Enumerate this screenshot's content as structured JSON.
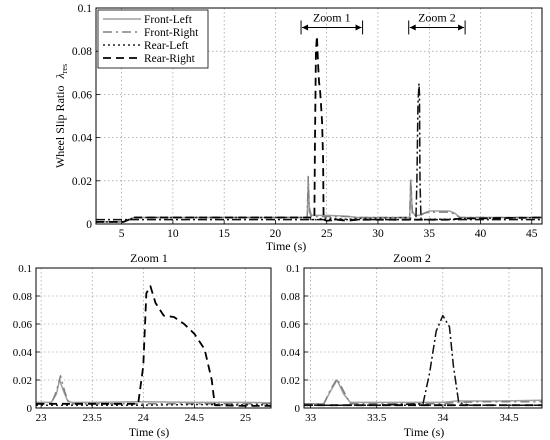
{
  "chart_data": [
    {
      "type": "line",
      "title": "",
      "xlabel": "Time (s)",
      "ylabel": "Wheel Slip Ratio",
      "ylabel_symbol": "λ",
      "ylabel_subscript": "res",
      "xlim": [
        2.5,
        46
      ],
      "ylim": [
        0,
        0.1
      ],
      "xticks": [
        5,
        10,
        15,
        20,
        25,
        30,
        35,
        40,
        45
      ],
      "yticks": [
        0,
        0.02,
        0.04,
        0.06,
        0.08,
        0.1
      ],
      "ytick_labels": [
        "0",
        "0.02",
        "0.04",
        "0.06",
        "0.08",
        "0.1"
      ],
      "grid": true,
      "legend_position": "top-left",
      "annotations": [
        {
          "label": "Zoom 1",
          "x_start": 22.5,
          "x_end": 28.5,
          "arrow_y": 0.091
        },
        {
          "label": "Zoom 2",
          "x_start": 33,
          "x_end": 38.5,
          "arrow_y": 0.091
        }
      ],
      "series": [
        {
          "name": "Front-Left",
          "color": "#a0a0a0",
          "dash": "solid",
          "x": [
            2.5,
            5.2,
            6.2,
            23.1,
            23.2,
            23.3,
            23.5,
            24.0,
            24.2,
            24.5,
            25.0,
            26.0,
            27.0,
            28.0,
            33.0,
            33.1,
            33.2,
            33.35,
            33.6,
            34.0,
            34.5,
            35.0,
            36.0,
            37.0,
            37.5,
            38.0,
            46.0
          ],
          "y": [
            0.001,
            0.001,
            0.003,
            0.003,
            0.02,
            0.008,
            0.004,
            0.004,
            0.004,
            0.004,
            0.004,
            0.0038,
            0.0036,
            0.003,
            0.003,
            0.0035,
            0.02,
            0.006,
            0.004,
            0.004,
            0.005,
            0.006,
            0.006,
            0.006,
            0.005,
            0.003,
            0.003
          ]
        },
        {
          "name": "Front-Right",
          "color": "#808080",
          "dash": "9,4,2,4",
          "x": [
            2.5,
            5.2,
            6.2,
            23.1,
            23.2,
            23.3,
            23.5,
            24.0,
            24.5,
            25.0,
            26.0,
            27.0,
            28.0,
            33.0,
            33.1,
            33.2,
            33.35,
            33.6,
            34.0,
            34.5,
            35.0,
            36.0,
            37.0,
            37.5,
            38.0,
            46.0
          ],
          "y": [
            0.001,
            0.001,
            0.003,
            0.003,
            0.022,
            0.006,
            0.0035,
            0.0035,
            0.0035,
            0.0035,
            0.0035,
            0.0035,
            0.003,
            0.003,
            0.004,
            0.021,
            0.005,
            0.0035,
            0.0035,
            0.005,
            0.0055,
            0.0055,
            0.0055,
            0.0045,
            0.003,
            0.003
          ]
        },
        {
          "name": "Rear-Left",
          "color": "#202020",
          "dash": "2,3",
          "x": [
            2.5,
            5.2,
            6.2,
            23.0,
            23.5,
            24.0,
            24.5,
            25.0,
            26.0,
            27.0,
            28.0,
            33.0,
            33.5,
            34.0,
            34.5,
            35.0,
            36.0,
            37.0,
            38.0,
            46.0
          ],
          "y": [
            0.001,
            0.001,
            0.003,
            0.003,
            0.002,
            0.002,
            0.0025,
            0.0028,
            0.0025,
            0.0022,
            0.0025,
            0.003,
            0.002,
            0.002,
            0.002,
            0.0022,
            0.0022,
            0.0022,
            0.0025,
            0.003
          ]
        },
        {
          "name": "Rear-Right",
          "color": "#000000",
          "dash": "8,5",
          "x": [
            2.5,
            5.2,
            6.2,
            23.0,
            23.8,
            23.85,
            23.95,
            24.05,
            24.15,
            24.25,
            24.35,
            24.45,
            24.55,
            24.65,
            24.7,
            25.0,
            26.0,
            27.0,
            28.0,
            33.0,
            34.0,
            35.0,
            36.0,
            37.0,
            38.0,
            46.0
          ],
          "y": [
            0.001,
            0.001,
            0.003,
            0.003,
            0.003,
            0.035,
            0.08,
            0.087,
            0.075,
            0.066,
            0.062,
            0.055,
            0.047,
            0.03,
            0.002,
            0.0015,
            0.002,
            0.0015,
            0.002,
            0.002,
            0.002,
            0.002,
            0.002,
            0.002,
            0.0025,
            0.003
          ]
        },
        {
          "name": "",
          "color": "#101010",
          "dash": "9,3,2,3",
          "x": [
            2.5,
            33.0,
            33.7,
            33.8,
            33.9,
            34.0,
            34.05,
            34.1,
            34.2,
            34.4,
            46.0
          ],
          "y": [
            0.002,
            0.002,
            0.002,
            0.02,
            0.055,
            0.065,
            0.06,
            0.02,
            0.002,
            0.002,
            0.002
          ]
        }
      ]
    },
    {
      "type": "line",
      "title": "Zoom 1",
      "xlabel": "Time (s)",
      "ylabel": "",
      "xlim": [
        22.95,
        25.25
      ],
      "ylim": [
        0,
        0.1
      ],
      "xticks": [
        23,
        23.5,
        24,
        24.5,
        25
      ],
      "yticks": [
        0,
        0.02,
        0.04,
        0.06,
        0.08,
        0.1
      ],
      "ytick_labels": [
        "0",
        "0.02",
        "0.04",
        "0.06",
        "0.08",
        "0.1"
      ],
      "grid": true,
      "series": [
        {
          "name": "Front-Left",
          "color": "#a0a0a0",
          "dash": "solid",
          "x": [
            22.95,
            23.1,
            23.15,
            23.18,
            23.22,
            23.26,
            23.3,
            23.5,
            24.0,
            24.5,
            25.0,
            25.25
          ],
          "y": [
            0.004,
            0.004,
            0.01,
            0.02,
            0.012,
            0.005,
            0.004,
            0.004,
            0.0045,
            0.004,
            0.004,
            0.0037
          ]
        },
        {
          "name": "Front-Right",
          "color": "#808080",
          "dash": "9,4,2,4",
          "x": [
            22.95,
            23.1,
            23.15,
            23.19,
            23.23,
            23.27,
            23.3,
            23.5,
            24.0,
            24.5,
            25.0,
            25.25
          ],
          "y": [
            0.003,
            0.003,
            0.012,
            0.023,
            0.012,
            0.004,
            0.003,
            0.003,
            0.003,
            0.003,
            0.003,
            0.003
          ]
        },
        {
          "name": "Rear-Left",
          "color": "#202020",
          "dash": "2,3",
          "x": [
            22.95,
            23.5,
            24.0,
            24.5,
            25.0,
            25.25
          ],
          "y": [
            0.002,
            0.002,
            0.002,
            0.0025,
            0.0022,
            0.0022
          ]
        },
        {
          "name": "Rear-Right",
          "color": "#000000",
          "dash": "8,5",
          "x": [
            22.95,
            23.5,
            23.95,
            24.0,
            24.03,
            24.07,
            24.12,
            24.2,
            24.3,
            24.4,
            24.5,
            24.6,
            24.67,
            24.7,
            25.0,
            25.25
          ],
          "y": [
            0.003,
            0.003,
            0.003,
            0.03,
            0.082,
            0.087,
            0.075,
            0.066,
            0.065,
            0.06,
            0.053,
            0.042,
            0.02,
            0.002,
            0.0015,
            0.0015
          ]
        }
      ]
    },
    {
      "type": "line",
      "title": "Zoom 2",
      "xlabel": "Time (s)",
      "ylabel": "",
      "xlim": [
        32.95,
        34.75
      ],
      "ylim": [
        0,
        0.1
      ],
      "xticks": [
        33,
        33.5,
        34,
        34.5
      ],
      "yticks": [
        0,
        0.02,
        0.04,
        0.06,
        0.08,
        0.1
      ],
      "ytick_labels": [
        "0",
        "0.02",
        "0.04",
        "0.06",
        "0.08",
        "0.1"
      ],
      "grid": true,
      "series": [
        {
          "name": "Front-Left",
          "color": "#a0a0a0",
          "dash": "solid",
          "x": [
            32.95,
            33.1,
            33.15,
            33.2,
            33.25,
            33.3,
            33.5,
            34.0,
            34.1,
            34.2,
            34.4,
            34.75
          ],
          "y": [
            0.003,
            0.003,
            0.012,
            0.02,
            0.01,
            0.004,
            0.004,
            0.004,
            0.005,
            0.005,
            0.005,
            0.0055
          ]
        },
        {
          "name": "Front-Right",
          "color": "#808080",
          "dash": "9,4,2,4",
          "x": [
            32.95,
            33.1,
            33.15,
            33.2,
            33.25,
            33.3,
            33.5,
            34.0,
            34.1,
            34.3,
            34.75
          ],
          "y": [
            0.003,
            0.003,
            0.013,
            0.021,
            0.012,
            0.003,
            0.003,
            0.003,
            0.004,
            0.0045,
            0.0045
          ]
        },
        {
          "name": "Rear-Left",
          "color": "#202020",
          "dash": "2,3",
          "x": [
            32.95,
            33.5,
            34.0,
            34.5,
            34.75
          ],
          "y": [
            0.002,
            0.002,
            0.002,
            0.002,
            0.002
          ]
        },
        {
          "name": "Rear-Right",
          "color": "#000000",
          "dash": "8,5",
          "x": [
            32.95,
            33.5,
            34.0,
            34.5,
            34.75
          ],
          "y": [
            0.002,
            0.002,
            0.002,
            0.002,
            0.002
          ]
        },
        {
          "name": "",
          "color": "#101010",
          "dash": "9,3,2,3",
          "x": [
            32.95,
            33.5,
            33.85,
            33.9,
            33.95,
            34.0,
            34.05,
            34.08,
            34.12,
            34.2,
            34.75
          ],
          "y": [
            0.002,
            0.002,
            0.003,
            0.025,
            0.055,
            0.066,
            0.058,
            0.03,
            0.004,
            0.002,
            0.002
          ]
        }
      ]
    }
  ]
}
